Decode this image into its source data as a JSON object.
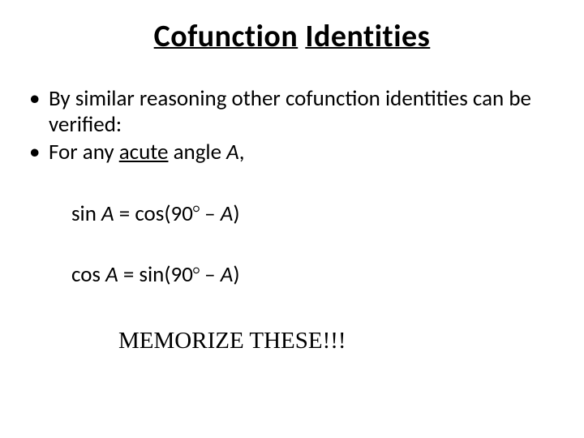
{
  "title": {
    "word1": "Cofunction",
    "word2": "Identities",
    "fontsize": 38,
    "color": "#000000"
  },
  "bullets": [
    {
      "text": "By similar reasoning other cofunction identities can be verified:"
    },
    {
      "prefix": "For any ",
      "underlined": "acute",
      "mid": " angle ",
      "italic": "A",
      "suffix": ","
    }
  ],
  "equations": {
    "eq1": {
      "lhs_func": "sin ",
      "lhs_var": "A",
      "eq": " = cos(90",
      "deg": "○",
      "tail_pre": " – ",
      "tail_var": "A",
      "tail_post": ")"
    },
    "eq2": {
      "lhs_func": "cos ",
      "lhs_var": "A",
      "eq": " = sin(90",
      "deg": "○",
      "tail_pre": " – ",
      "tail_var": "A",
      "tail_post": ")"
    }
  },
  "memorize": "MEMORIZE THESE!!!",
  "style": {
    "body_fontsize": 27,
    "memorize_fontsize": 29,
    "background": "#ffffff",
    "text_color": "#000000",
    "title_font": "Calibri",
    "memorize_font": "Times New Roman"
  }
}
